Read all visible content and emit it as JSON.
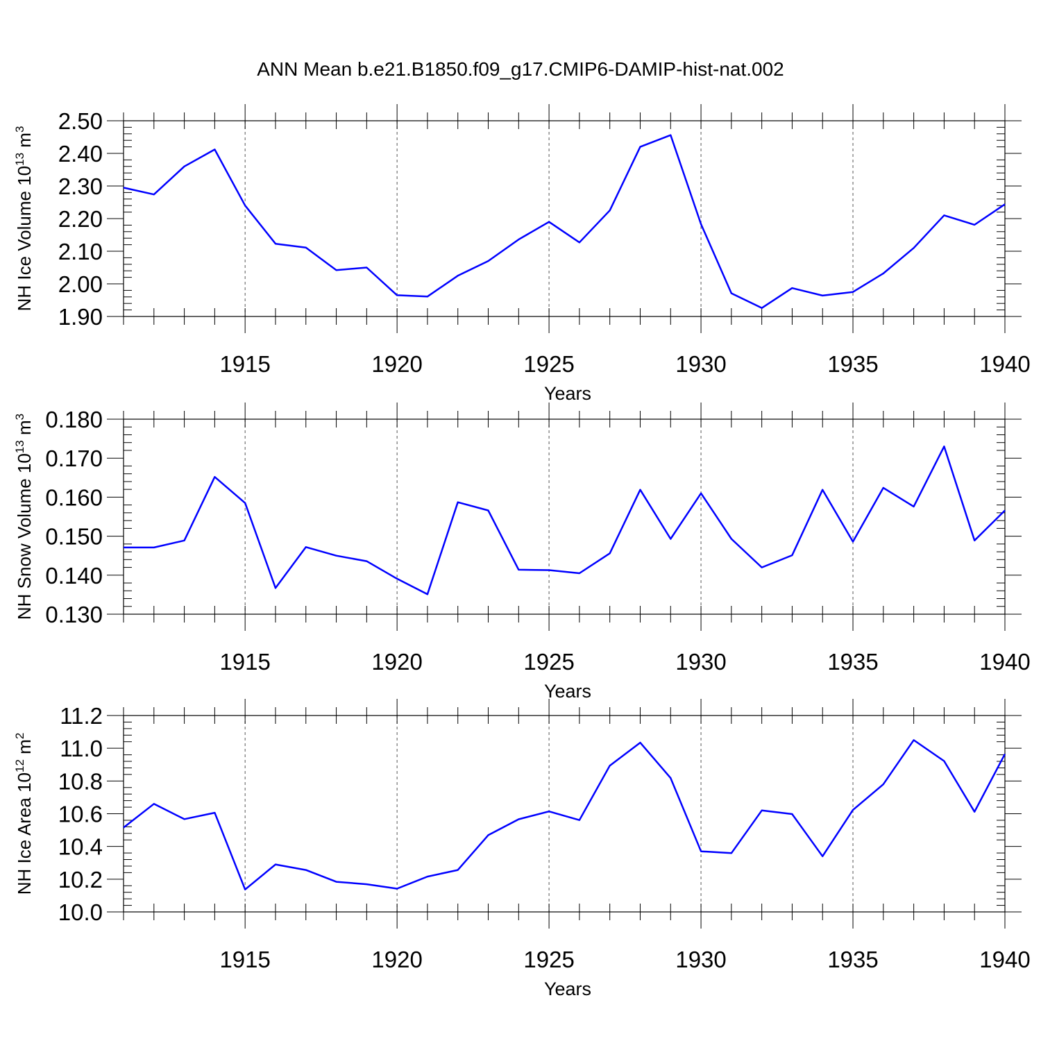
{
  "title": "ANN Mean b.e21.B1850.f09_g17.CMIP6-DAMIP-hist-nat.002",
  "colors": {
    "series": "#0000ff",
    "axis": "#000000",
    "grid": "#555555"
  },
  "chart_data": [
    {
      "type": "line",
      "title": "",
      "xlabel": "Years",
      "ylabel_main": "NH Ice Volume 10",
      "ylabel_exp": "13",
      "ylabel_unit": " m",
      "ylabel_unit_exp": "3",
      "xlim": [
        1911,
        1940
      ],
      "ylim": [
        1.9,
        2.5
      ],
      "xticks": [
        1915,
        1920,
        1925,
        1930,
        1935,
        1940
      ],
      "xtick_labels": [
        "1915",
        "1920",
        "1925",
        "1930",
        "1935",
        "1940"
      ],
      "yticks": [
        1.9,
        2.0,
        2.1,
        2.2,
        2.3,
        2.4,
        2.5
      ],
      "ytick_labels": [
        "1.90",
        "2.00",
        "2.10",
        "2.20",
        "2.30",
        "2.40",
        "2.50"
      ],
      "grid": "vertical dashed at major x ticks",
      "x": [
        1911,
        1912,
        1913,
        1914,
        1915,
        1916,
        1917,
        1918,
        1919,
        1920,
        1921,
        1922,
        1923,
        1924,
        1925,
        1926,
        1927,
        1928,
        1929,
        1930,
        1931,
        1932,
        1933,
        1934,
        1935,
        1936,
        1937,
        1938,
        1939,
        1940
      ],
      "series": [
        {
          "values": [
            2.295,
            2.274,
            2.36,
            2.412,
            2.24,
            2.123,
            2.111,
            2.042,
            2.05,
            1.965,
            1.961,
            2.025,
            2.07,
            2.136,
            2.19,
            2.127,
            2.225,
            2.42,
            2.456,
            2.183,
            1.971,
            1.926,
            1.987,
            1.964,
            1.975,
            2.032,
            2.11,
            2.21,
            2.181,
            2.244
          ]
        }
      ]
    },
    {
      "type": "line",
      "title": "",
      "xlabel": "Years",
      "ylabel_main": "NH Snow Volume 10",
      "ylabel_exp": "13",
      "ylabel_unit": " m",
      "ylabel_unit_exp": "3",
      "xlim": [
        1911,
        1940
      ],
      "ylim": [
        0.13,
        0.18
      ],
      "xticks": [
        1915,
        1920,
        1925,
        1930,
        1935,
        1940
      ],
      "xtick_labels": [
        "1915",
        "1920",
        "1925",
        "1930",
        "1935",
        "1940"
      ],
      "yticks": [
        0.13,
        0.14,
        0.15,
        0.16,
        0.17,
        0.18
      ],
      "ytick_labels": [
        "0.130",
        "0.140",
        "0.150",
        "0.160",
        "0.170",
        "0.180"
      ],
      "grid": "vertical dashed at major x ticks",
      "x": [
        1911,
        1912,
        1913,
        1914,
        1915,
        1916,
        1917,
        1918,
        1919,
        1920,
        1921,
        1922,
        1923,
        1924,
        1925,
        1926,
        1927,
        1928,
        1929,
        1930,
        1931,
        1932,
        1933,
        1934,
        1935,
        1936,
        1937,
        1938,
        1939,
        1940
      ],
      "series": [
        {
          "values": [
            0.1471,
            0.1471,
            0.1489,
            0.1652,
            0.1585,
            0.1367,
            0.1472,
            0.145,
            0.1436,
            0.1391,
            0.1351,
            0.1587,
            0.1566,
            0.1414,
            0.1413,
            0.1405,
            0.1456,
            0.1619,
            0.1493,
            0.161,
            0.1493,
            0.142,
            0.1451,
            0.1619,
            0.1486,
            0.1624,
            0.1576,
            0.173,
            0.1489,
            0.1566
          ]
        }
      ]
    },
    {
      "type": "line",
      "title": "",
      "xlabel": "Years",
      "ylabel_main": "NH Ice Area 10",
      "ylabel_exp": "12",
      "ylabel_unit": " m",
      "ylabel_unit_exp": "2",
      "xlim": [
        1911,
        1940
      ],
      "ylim": [
        10.0,
        11.2
      ],
      "xticks": [
        1915,
        1920,
        1925,
        1930,
        1935,
        1940
      ],
      "xtick_labels": [
        "1915",
        "1920",
        "1925",
        "1930",
        "1935",
        "1940"
      ],
      "yticks": [
        10.0,
        10.2,
        10.4,
        10.6,
        10.8,
        11.0,
        11.2
      ],
      "ytick_labels": [
        "10.0",
        "10.2",
        "10.4",
        "10.6",
        "10.8",
        "11.0",
        "11.2"
      ],
      "grid": "vertical dashed at major x ticks",
      "x": [
        1911,
        1912,
        1913,
        1914,
        1915,
        1916,
        1917,
        1918,
        1919,
        1920,
        1921,
        1922,
        1923,
        1924,
        1925,
        1926,
        1927,
        1928,
        1929,
        1930,
        1931,
        1932,
        1933,
        1934,
        1935,
        1936,
        1937,
        1938,
        1939,
        1940
      ],
      "series": [
        {
          "values": [
            10.515,
            10.66,
            10.567,
            10.606,
            10.137,
            10.29,
            10.256,
            10.184,
            10.169,
            10.142,
            10.216,
            10.256,
            10.469,
            10.566,
            10.614,
            10.561,
            10.894,
            11.034,
            10.818,
            10.37,
            10.359,
            10.62,
            10.598,
            10.34,
            10.623,
            10.78,
            11.05,
            10.922,
            10.612,
            10.965
          ]
        }
      ]
    }
  ]
}
